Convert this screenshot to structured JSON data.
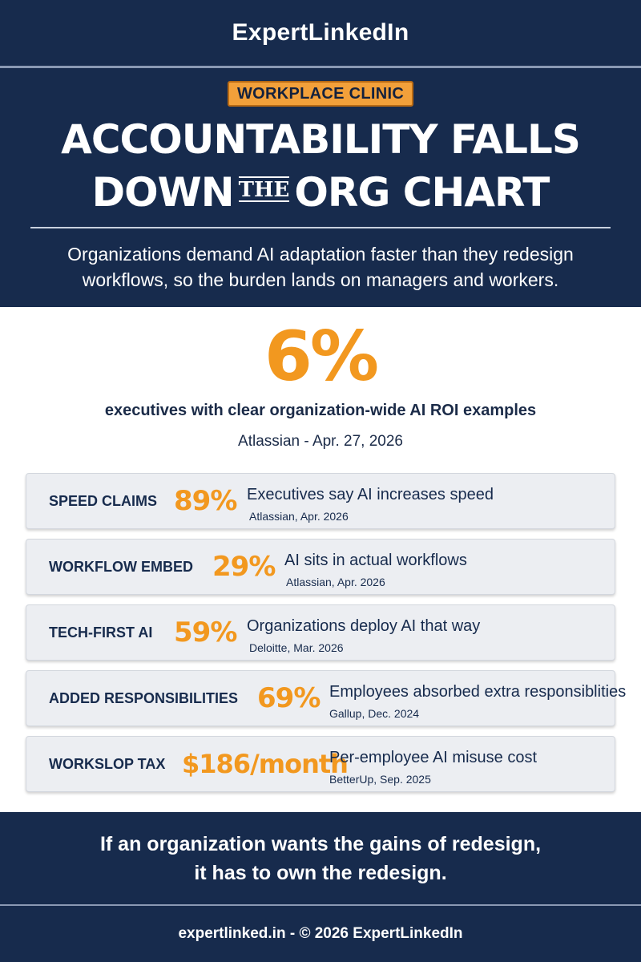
{
  "brand": "ExpertLinkedIn",
  "badge": "WORKPLACE CLINIC",
  "headline": {
    "line1": "ACCOUNTABILITY FALLS",
    "line2_before": "DOWN",
    "line2_small": "THE",
    "line2_after": "ORG CHART"
  },
  "subhead": {
    "line1": "Organizations demand AI adaptation faster than they redesign",
    "line2": "workflows, so the burden lands on managers and workers."
  },
  "key_stat": {
    "value": "6%",
    "label": "executives with clear organization-wide AI ROI examples",
    "source": "Atlassian - Apr. 27, 2026"
  },
  "stats": [
    {
      "label": "SPEED CLAIMS",
      "value": "89%",
      "description": "Executives say AI increases speed",
      "source": "Atlassian, Apr. 2026"
    },
    {
      "label": "WORKFLOW EMBED",
      "value": "29%",
      "description": "AI sits in actual workflows",
      "source": "Atlassian, Apr. 2026"
    },
    {
      "label": "TECH-FIRST AI",
      "value": "59%",
      "description": "Organizations deploy AI that way",
      "source": "Deloitte, Mar. 2026"
    },
    {
      "label": "ADDED RESPONSIBILITIES",
      "value": "69%",
      "description": "Employees absorbed extra responsiblities",
      "source": "Gallup, Dec. 2024"
    },
    {
      "label": "WORKSLOP TAX",
      "value": "$186/month",
      "description": "Per-employee AI misuse cost",
      "source": "BetterUp, Sep. 2025"
    }
  ],
  "conclusion": {
    "line1": "If an organization wants the gains of redesign,",
    "line2": "it has to own the redesign."
  },
  "footer": "expertlinked.in - © 2026 ExpertLinkedIn",
  "colors": {
    "navy": "#172b4d",
    "accent_orange": "#f2981f",
    "row_background": "#eceef2"
  }
}
